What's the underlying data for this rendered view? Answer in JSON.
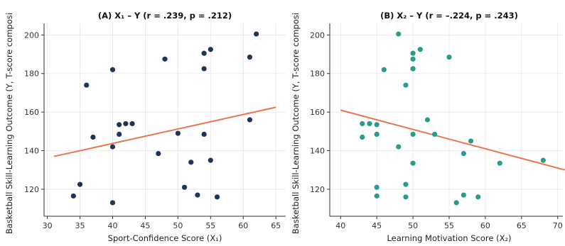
{
  "chart_data": [
    {
      "type": "scatter",
      "title": "(A) X₁ – Y  (r = .239, p = .212)",
      "xlabel": "Sport-Confidence Score (X₁)",
      "ylabel": "Basketball Skill-Learning Outcome (Y, T-score composi",
      "xlim": [
        29.5,
        66.5
      ],
      "ylim": [
        106,
        206
      ],
      "xticks": [
        30,
        35,
        40,
        45,
        50,
        55,
        60,
        65
      ],
      "yticks": [
        120,
        140,
        160,
        180,
        200
      ],
      "grid": true,
      "point_color": "#1e3458",
      "line_color": "#e8764f",
      "fit_line": [
        [
          31,
          137
        ],
        [
          65,
          162.5
        ]
      ],
      "x": [
        62,
        48,
        55,
        54,
        61,
        40,
        54,
        36,
        61,
        42,
        43,
        41,
        37,
        50,
        54,
        41,
        40,
        47,
        55,
        52,
        35,
        51,
        34,
        53,
        56,
        40
      ],
      "y": [
        200.5,
        187.5,
        192.5,
        190.5,
        188.5,
        182,
        182.5,
        174,
        156,
        154,
        154,
        153.5,
        147,
        149,
        148.5,
        148.5,
        142,
        138.5,
        135,
        134,
        122.5,
        121,
        116.5,
        117,
        116,
        113
      ]
    },
    {
      "type": "scatter",
      "title": "(B) X₂ – Y  (r = –.224, p = .243)",
      "xlabel": "Learning Motivation Score (X₂)",
      "ylabel": "Basketball Skill-Learning Outcome (Y, T-score composi",
      "xlim": [
        38.5,
        71.5
      ],
      "ylim": [
        106,
        206
      ],
      "xticks": [
        40,
        45,
        50,
        55,
        60,
        65,
        70
      ],
      "yticks": [
        120,
        140,
        160,
        180,
        200
      ],
      "grid": true,
      "point_color": "#2b9b8a",
      "line_color": "#e8764f",
      "fit_line": [
        [
          40,
          161
        ],
        [
          71,
          130
        ]
      ],
      "x": [
        48,
        51,
        50,
        55,
        50,
        50,
        46,
        50,
        49,
        52,
        43,
        44,
        45,
        53,
        50,
        45,
        43,
        58,
        48,
        57,
        68,
        50,
        62,
        49,
        45,
        57,
        59,
        45,
        49,
        56
      ],
      "y": [
        200.5,
        192.5,
        190.5,
        188.5,
        187.5,
        182.5,
        182,
        182.5,
        174,
        156,
        154,
        154,
        153.5,
        148.5,
        148.5,
        148.5,
        147,
        145,
        142,
        138.5,
        135,
        133.5,
        133.5,
        122.5,
        121,
        117,
        116,
        116.5,
        116,
        113
      ]
    }
  ]
}
